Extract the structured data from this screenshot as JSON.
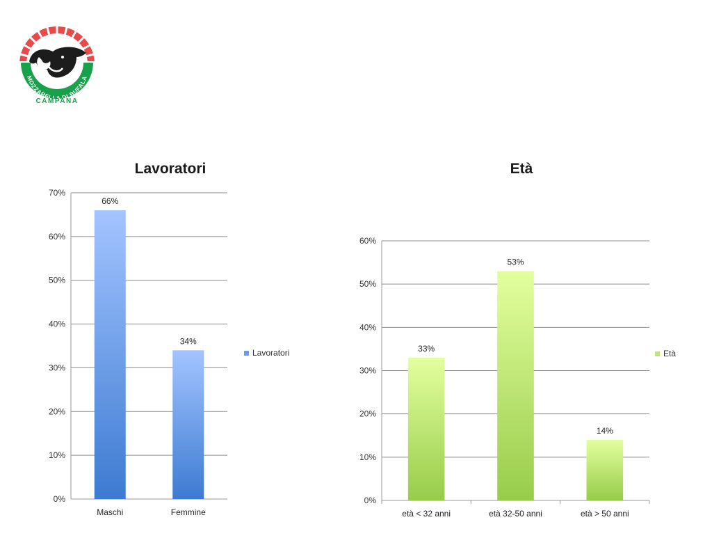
{
  "logo": {
    "text_top": "MOZZARELLA DI BUFALA",
    "text_bottom": "CAMPANA"
  },
  "chart_data": [
    {
      "type": "bar",
      "title": "Lavoratori",
      "categories": [
        "Maschi",
        "Femmine"
      ],
      "series": [
        {
          "name": "Lavoratori",
          "values": [
            66,
            34
          ]
        }
      ],
      "data_labels": [
        "66%",
        "34%"
      ],
      "ylim": [
        0,
        70
      ],
      "yticks": [
        "0%",
        "10%",
        "20%",
        "30%",
        "40%",
        "50%",
        "60%",
        "70%"
      ],
      "grid": true,
      "legend": "right",
      "colors": {
        "top": "#a3c4ff",
        "bottom": "#3d7bd1"
      }
    },
    {
      "type": "bar",
      "title": "Età",
      "categories": [
        "età < 32 anni",
        "età 32-50 anni",
        "età > 50 anni"
      ],
      "series": [
        {
          "name": "Età",
          "values": [
            33,
            53,
            14
          ]
        }
      ],
      "data_labels": [
        "33%",
        "53%",
        "14%"
      ],
      "ylim": [
        0,
        60
      ],
      "yticks": [
        "0%",
        "10%",
        "20%",
        "30%",
        "40%",
        "50%",
        "60%"
      ],
      "grid": true,
      "legend": "right",
      "colors": {
        "top": "#e3ff9e",
        "bottom": "#97cc4a"
      }
    }
  ]
}
